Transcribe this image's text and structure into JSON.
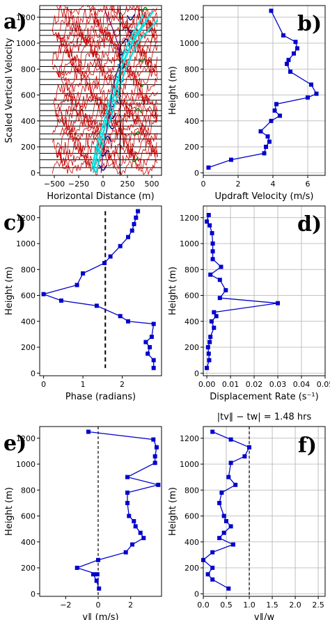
{
  "figure": {
    "panels": {
      "a": {
        "letter": "a)",
        "xlabel": "Horizontal Distance (m)",
        "ylabel": "Scaled Vertical Velocity"
      },
      "b": {
        "letter": "b)",
        "xlabel": "Updraft Velocity (m/s)",
        "ylabel": "Height (m)"
      },
      "c": {
        "letter": "c)",
        "xlabel": "Phase (radians)",
        "ylabel": "Height (m)"
      },
      "d": {
        "letter": "d)",
        "xlabel": "Displacement Rate (s⁻¹)",
        "ylabel": "Height (m)"
      },
      "e": {
        "letter": "e)",
        "xlabel": "v∥ (m/s)",
        "ylabel": "Height (m)"
      },
      "f": {
        "letter": "f)",
        "xlabel": "v∥/w",
        "ylabel": "Height (m)",
        "title": "|tv∥ − tw| = 1.48 hrs"
      }
    },
    "colors": {
      "series": "#0000cc",
      "trace": "#cc0000",
      "fit": "#00e5e5",
      "path": "#800060",
      "dark": "#000080",
      "green": "#008800"
    }
  },
  "chart_data": [
    {
      "id": "a",
      "type": "line",
      "xlabel": "Horizontal Distance (m)",
      "ylabel": "Scaled Vertical Velocity",
      "xlim": [
        -650,
        600
      ],
      "ylim": [
        -20,
        1290
      ],
      "xticks": [
        -500,
        -250,
        0,
        250,
        500
      ],
      "yticks": [
        0,
        200,
        400,
        600,
        800,
        1000,
        1200
      ],
      "baselines": [
        40,
        100,
        150,
        200,
        260,
        300,
        360,
        400,
        440,
        480,
        530,
        560,
        610,
        680,
        720,
        780,
        820,
        870,
        930,
        980,
        1010,
        1060,
        1100,
        1150,
        1200,
        1260
      ],
      "vertical_line_x": 175,
      "grid": false
    },
    {
      "id": "b",
      "type": "line",
      "xlabel": "Updraft Velocity (m/s)",
      "ylabel": "Height (m)",
      "xlim": [
        0,
        7
      ],
      "ylim": [
        -20,
        1290
      ],
      "xticks": [
        0,
        2,
        4,
        6
      ],
      "yticks": [
        0,
        200,
        400,
        600,
        800,
        1000,
        1200
      ],
      "grid": true,
      "series": [
        {
          "x": [
            0.3,
            1.6,
            3.5,
            3.6,
            3.8,
            3.7,
            3.3,
            3.9,
            4.4,
            4.1,
            4.2,
            6.0,
            6.5,
            6.2,
            5.0,
            4.8,
            4.9,
            5.2,
            5.4,
            5.3,
            4.6,
            3.9
          ],
          "y": [
            40,
            100,
            150,
            200,
            240,
            280,
            320,
            400,
            440,
            480,
            530,
            580,
            610,
            680,
            780,
            840,
            870,
            920,
            960,
            1010,
            1060,
            1250
          ]
        }
      ]
    },
    {
      "id": "c",
      "type": "line",
      "xlabel": "Phase (radians)",
      "ylabel": "Height (m)",
      "xlim": [
        -0.1,
        3.0
      ],
      "ylim": [
        -20,
        1290
      ],
      "xticks": [
        0,
        1,
        2
      ],
      "yticks": [
        0,
        200,
        400,
        600,
        800,
        1000,
        1200
      ],
      "vertical_dashed_x": 1.57,
      "grid": false,
      "series": [
        {
          "x": [
            2.8,
            2.8,
            2.65,
            2.7,
            2.6,
            2.75,
            2.8,
            2.15,
            1.95,
            1.35,
            0.45,
            0.0,
            0.85,
            1.0,
            1.55,
            1.7,
            1.95,
            2.15,
            2.25,
            2.3,
            2.35,
            2.4
          ],
          "y": [
            40,
            100,
            150,
            200,
            240,
            280,
            380,
            400,
            440,
            520,
            560,
            610,
            680,
            770,
            850,
            900,
            980,
            1050,
            1100,
            1150,
            1200,
            1250
          ]
        }
      ]
    },
    {
      "id": "d",
      "type": "line",
      "xlabel": "Displacement Rate (s⁻¹)",
      "ylabel": "Height (m)",
      "xlim": [
        -0.0015,
        0.05
      ],
      "ylim": [
        -20,
        1290
      ],
      "xticks": [
        0.0,
        0.01,
        0.02,
        0.03,
        0.04,
        0.05
      ],
      "yticks": [
        0,
        200,
        400,
        600,
        800,
        1000,
        1200
      ],
      "grid": true,
      "series": [
        {
          "x": [
            0.0,
            0.001,
            0.0008,
            0.0005,
            0.0012,
            0.0015,
            0.003,
            0.002,
            0.004,
            0.003,
            0.03,
            0.0055,
            0.008,
            0.0055,
            0.0015,
            0.006,
            0.0025,
            0.0025,
            0.0025,
            0.0022,
            0.0012,
            0.0,
            0.0008
          ],
          "y": [
            40,
            100,
            150,
            200,
            240,
            280,
            350,
            400,
            440,
            470,
            540,
            580,
            640,
            720,
            760,
            820,
            880,
            940,
            1000,
            1080,
            1140,
            1170,
            1220
          ]
        }
      ]
    },
    {
      "id": "e",
      "type": "line",
      "xlabel": "v∥ (m/s)",
      "ylabel": "Height (m)",
      "xlim": [
        -3.6,
        3.9
      ],
      "ylim": [
        -20,
        1290
      ],
      "xticks": [
        -2,
        0,
        2
      ],
      "yticks": [
        0,
        200,
        400,
        600,
        800,
        1000,
        1200
      ],
      "vertical_dashed_x": 0,
      "grid": false,
      "series": [
        {
          "x": [
            0.05,
            -0.1,
            -0.3,
            -0.05,
            -1.3,
            0.0,
            1.7,
            2.1,
            2.8,
            2.6,
            2.3,
            2.2,
            1.9,
            1.8,
            1.8,
            3.7,
            1.8,
            3.5,
            3.5,
            3.6,
            3.4,
            -0.6
          ],
          "y": [
            40,
            100,
            150,
            150,
            200,
            260,
            320,
            380,
            430,
            470,
            520,
            560,
            600,
            700,
            780,
            840,
            900,
            1010,
            1060,
            1130,
            1190,
            1250
          ]
        }
      ]
    },
    {
      "id": "f",
      "type": "line",
      "title": "|tv∥ − tw| = 1.48 hrs",
      "xlabel": "v∥/w",
      "ylabel": "Height (m)",
      "xlim": [
        0,
        2.65
      ],
      "ylim": [
        -20,
        1290
      ],
      "xticks": [
        0.0,
        0.5,
        1.0,
        1.5,
        2.0,
        2.5
      ],
      "yticks": [
        0,
        200,
        400,
        600,
        800,
        1000,
        1200
      ],
      "vertical_dashed_x": 1.0,
      "grid": true,
      "series": [
        {
          "x": [
            0.55,
            0.2,
            0.1,
            0.2,
            0.0,
            0.2,
            0.65,
            0.35,
            0.45,
            0.6,
            0.5,
            0.45,
            0.35,
            0.4,
            0.7,
            0.55,
            0.6,
            0.9,
            1.0,
            0.6,
            0.2
          ],
          "y": [
            40,
            110,
            150,
            200,
            260,
            320,
            380,
            430,
            470,
            520,
            560,
            600,
            700,
            780,
            840,
            900,
            1010,
            1060,
            1130,
            1190,
            1250
          ]
        }
      ]
    }
  ]
}
